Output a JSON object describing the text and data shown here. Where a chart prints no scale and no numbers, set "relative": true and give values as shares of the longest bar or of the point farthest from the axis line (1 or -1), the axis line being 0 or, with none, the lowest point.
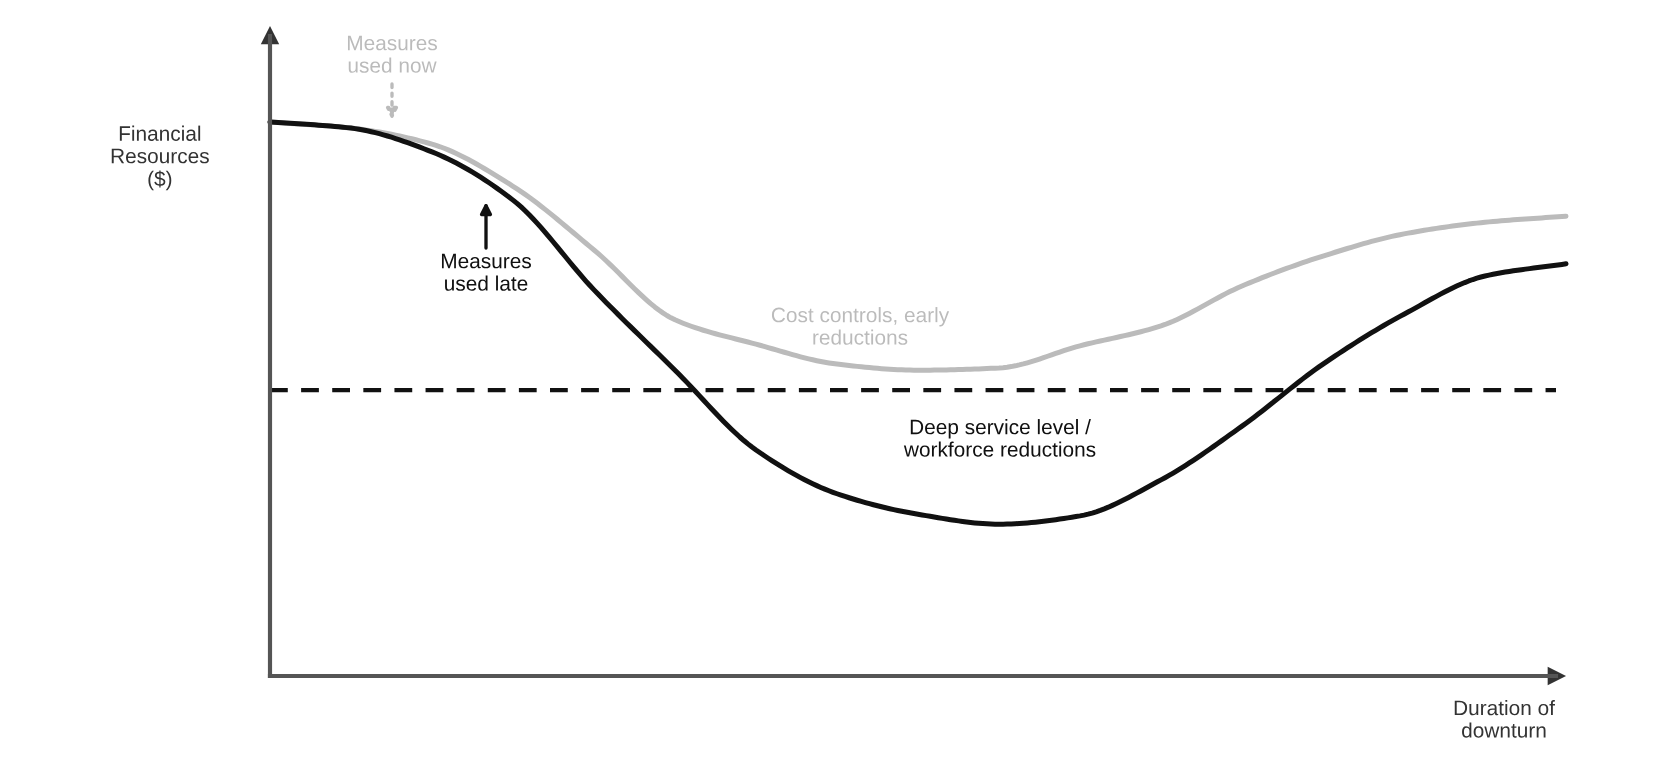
{
  "chart_data": {
    "type": "line",
    "relative": true,
    "grid": false,
    "legend": false,
    "marker": "none",
    "line_style": "solid",
    "ylabel": "Financial\nResources\n($)",
    "xlabel": "Duration of\ndownturn",
    "categories": [
      null,
      null,
      null,
      null,
      null,
      null,
      null,
      null,
      null,
      null,
      null,
      null,
      null,
      null,
      null,
      null,
      null
    ],
    "series": [
      {
        "color": "#bbbbbb",
        "values": [
          1.0,
          0.989,
          0.96,
          0.884,
          0.769,
          0.643,
          0.599,
          0.563,
          0.552,
          0.556,
          0.596,
          0.632,
          0.704,
          0.758,
          0.798,
          0.819,
          0.83
        ]
      },
      {
        "color": "#111111",
        "values": [
          1.0,
          0.989,
          0.946,
          0.859,
          0.697,
          0.552,
          0.408,
          0.329,
          0.292,
          0.274,
          0.289,
          0.354,
          0.451,
          0.563,
          0.653,
          0.722,
          0.744
        ]
      }
    ],
    "ref_lines": [
      {
        "axis": "y",
        "value": 0.516,
        "color": "#111111",
        "line_style": "dashed"
      }
    ],
    "annotations": [
      "Measures\nused now",
      "Measures\nused late",
      "Cost controls, early\nreductions",
      "Deep service level /\nworkforce reductions"
    ]
  }
}
